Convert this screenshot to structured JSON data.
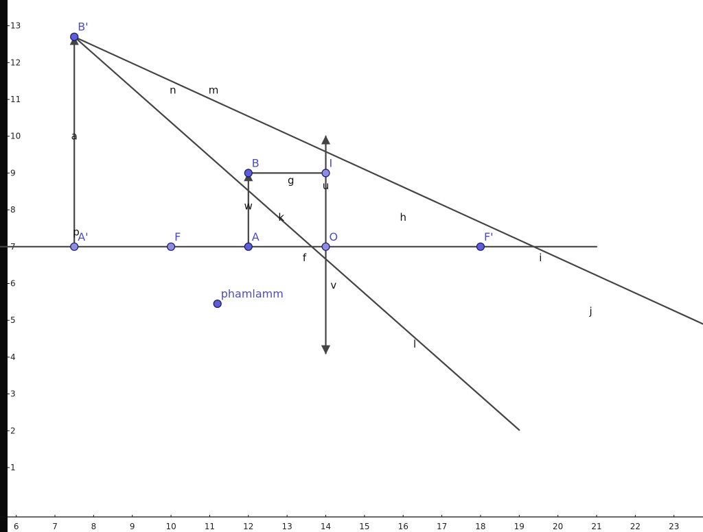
{
  "colors": {
    "background": "#ffffff",
    "left_bar": "#0a0a0a",
    "axis": "#111111",
    "line": "#444444",
    "point_fill": "#5c5cdc",
    "point_fill_light": "#8c8ce6",
    "point_stroke": "#1a1a50",
    "point_label": "#4a4ad0",
    "segment_label": "#111111"
  },
  "axes": {
    "x_range": [
      5.58,
      23.75
    ],
    "y_range": [
      -0.75,
      13.7
    ],
    "x_ticks": [
      6,
      7,
      8,
      9,
      10,
      11,
      12,
      13,
      14,
      15,
      16,
      17,
      18,
      19,
      20,
      21,
      22,
      23
    ],
    "y_ticks": [
      1,
      2,
      3,
      4,
      5,
      6,
      7,
      8,
      9,
      10,
      11,
      12,
      13
    ]
  },
  "points": [
    {
      "id": "B_prime",
      "label": "B'",
      "x": 7.5,
      "y": 12.7,
      "style": "dark"
    },
    {
      "id": "A_prime",
      "label": "A'",
      "x": 7.5,
      "y": 7,
      "style": "light"
    },
    {
      "id": "F",
      "label": "F",
      "x": 10,
      "y": 7,
      "style": "light"
    },
    {
      "id": "A",
      "label": "A",
      "x": 12,
      "y": 7,
      "style": "dark"
    },
    {
      "id": "B",
      "label": "B",
      "x": 12,
      "y": 9,
      "style": "dark"
    },
    {
      "id": "I",
      "label": "I",
      "x": 14,
      "y": 9,
      "style": "light"
    },
    {
      "id": "O",
      "label": "O",
      "x": 14,
      "y": 7,
      "style": "light"
    },
    {
      "id": "F_prime",
      "label": "F'",
      "x": 18,
      "y": 7,
      "style": "dark"
    },
    {
      "id": "phamlamm",
      "label": "phamlamm",
      "x": 11.2,
      "y": 5.45,
      "style": "dark"
    }
  ],
  "segments": [
    {
      "id": "optical-axis",
      "x1": 5.58,
      "y1": 7,
      "x2": 21,
      "y2": 7
    },
    {
      "id": "lens-upper",
      "x1": 14,
      "y1": 7,
      "x2": 14,
      "y2": 10,
      "arrow": true
    },
    {
      "id": "lens-lower",
      "x1": 14,
      "y1": 7,
      "x2": 14,
      "y2": 4.1,
      "arrow": true
    },
    {
      "id": "object-AB",
      "x1": 12,
      "y1": 7,
      "x2": 12,
      "y2": 9,
      "arrow": true
    },
    {
      "id": "image-AprimeBprime",
      "x1": 7.5,
      "y1": 7,
      "x2": 7.5,
      "y2": 12.7,
      "arrow": true
    },
    {
      "id": "ray-BI",
      "x1": 12,
      "y1": 9,
      "x2": 14,
      "y2": 9
    },
    {
      "id": "ray-through-center",
      "x1": 7.5,
      "y1": 12.7,
      "x2": 19,
      "y2": 2.02
    },
    {
      "id": "ray-through-focus",
      "x1": 7.5,
      "y1": 12.7,
      "x2": 23.75,
      "y2": 4.9
    }
  ],
  "segment_labels": [
    {
      "text": "a",
      "x": 7.5,
      "y": 10
    },
    {
      "text": "p",
      "x": 7.55,
      "y": 7.4
    },
    {
      "text": "n",
      "x": 10.05,
      "y": 11.25
    },
    {
      "text": "m",
      "x": 11.1,
      "y": 11.25
    },
    {
      "text": "w",
      "x": 12.0,
      "y": 8.1
    },
    {
      "text": "g",
      "x": 13.1,
      "y": 8.8
    },
    {
      "text": "k",
      "x": 12.85,
      "y": 7.8
    },
    {
      "text": "u",
      "x": 14.0,
      "y": 8.65
    },
    {
      "text": "f",
      "x": 13.45,
      "y": 6.7
    },
    {
      "text": "v",
      "x": 14.2,
      "y": 5.95
    },
    {
      "text": "h",
      "x": 16.0,
      "y": 7.8
    },
    {
      "text": "i",
      "x": 19.55,
      "y": 6.7
    },
    {
      "text": "l",
      "x": 16.3,
      "y": 4.35
    },
    {
      "text": "j",
      "x": 20.85,
      "y": 5.25
    }
  ]
}
